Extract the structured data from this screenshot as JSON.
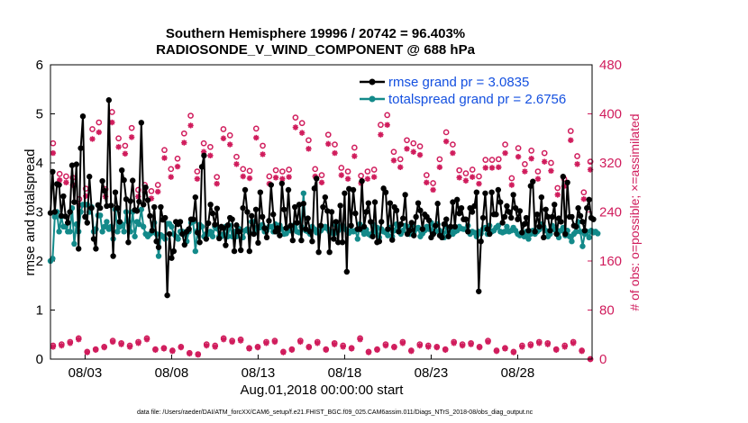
{
  "chart_data": {
    "type": "line",
    "title_line1": "Southern Hemisphere 19996 / 20742 = 96.403%",
    "title_line2": "RADIOSONDE_V_WIND_COMPONENT @ 688 hPa",
    "xlabel": "Aug.01,2018 00:00:00 start",
    "ylabel": "rmse and totalspread",
    "ylabel_right": "# of obs: o=possible; ×=assimilated",
    "xlim": [
      1,
      32.3
    ],
    "ylim": [
      0,
      6
    ],
    "ylim_right": [
      0,
      480
    ],
    "x_ticks": [
      3,
      8,
      13,
      18,
      23,
      28
    ],
    "x_tick_labels": [
      "08/03",
      "08/08",
      "08/13",
      "08/18",
      "08/23",
      "08/28"
    ],
    "y_ticks": [
      "0",
      "1",
      "2",
      "3",
      "4",
      "5",
      "6"
    ],
    "y_ticks_right": [
      "0",
      "80",
      "160",
      "240",
      "320",
      "400",
      "480"
    ],
    "colors": {
      "rmse": "#000000",
      "spread": "#138a8a",
      "obs": "#d01c5c",
      "legend_text": "#1450e0"
    },
    "series": [
      {
        "name": "rmse",
        "legend": "rmse grand pr = 3.0835",
        "values": [
          2.98,
          3.82,
          3.0,
          3.57,
          3.55,
          2.92,
          3.32,
          2.91,
          2.78,
          3.0,
          3.95,
          3.2,
          3.97,
          2.25,
          4.3,
          4.95,
          2.9,
          2.78,
          3.72,
          3.08,
          2.45,
          2.25,
          3.14,
          3.08,
          3.63,
          3.43,
          3.12,
          5.28,
          3.13,
          2.1,
          3.4,
          3.08,
          2.8,
          3.85,
          3.65,
          3.26,
          2.38,
          3.22,
          3.64,
          3.04,
          3.02,
          3.21,
          4.82,
          3.15,
          3.5,
          3.24,
          2.92,
          2.62,
          3.1,
          2.4,
          2.28,
          3.1,
          2.84,
          2.88,
          1.3,
          2.55,
          2.06,
          2.2,
          2.8,
          2.75,
          2.8,
          2.55,
          2.33,
          2.6,
          2.65,
          2.85,
          2.85,
          3.3,
          2.58,
          2.38,
          3.92,
          4.15,
          2.45,
          2.77,
          3.15,
          2.97,
          2.74,
          3.07,
          2.46,
          2.7,
          2.67,
          2.32,
          2.73,
          2.88,
          2.85,
          2.2,
          2.73,
          2.6,
          2.22,
          3.08,
          3.45,
          3.0,
          2.2,
          2.92,
          2.55,
          3.05,
          2.37,
          3.4,
          2.9,
          2.67,
          2.48,
          2.82,
          3.55,
          2.95,
          2.6,
          2.67,
          2.52,
          3.58,
          3.05,
          2.67,
          3.45,
          2.72,
          2.42,
          3.1,
          2.78,
          3.15,
          2.42,
          3.17,
          2.65,
          2.87,
          2.6,
          2.4,
          3.48,
          3.68,
          2.18,
          2.72,
          3.1,
          3.3,
          3.02,
          2.18,
          3.0,
          2.45,
          2.8,
          2.38,
          3.13,
          2.38,
          3.38,
          1.78,
          3.47,
          2.72,
          3.45,
          2.97,
          2.65,
          2.65,
          3.63,
          2.7,
          3.0,
          3.18,
          2.8,
          2.5,
          3.2,
          2.38,
          2.4,
          2.8,
          3.48,
          3.4,
          2.65,
          3.18,
          2.43,
          3.1,
          3.03,
          2.6,
          2.75,
          2.87,
          3.35,
          2.55,
          2.62,
          2.78,
          2.52,
          2.9,
          3.18,
          3.03,
          2.65,
          2.95,
          2.9,
          2.83,
          2.48,
          2.55,
          2.72,
          3.17,
          2.52,
          2.48,
          2.75,
          2.85,
          2.5,
          2.7,
          3.2,
          2.7,
          3.25,
          2.97,
          3.08,
          2.85,
          2.85,
          2.6,
          3.08,
          3.0,
          3.12,
          3.4,
          1.38,
          2.4,
          2.88,
          3.38,
          2.65,
          2.55,
          3.4,
          2.95,
          2.95,
          3.45,
          3.2,
          2.78,
          2.9,
          3.12,
          3.0,
          2.88,
          3.35,
          3.08,
          2.85,
          3.02,
          2.58,
          2.75,
          2.88,
          2.62,
          3.53,
          3.62,
          2.6,
          2.95,
          2.7,
          3.3,
          2.48,
          3.05,
          2.9,
          2.62,
          2.9,
          3.15,
          2.55,
          2.87,
          2.8,
          3.72,
          2.55,
          3.6,
          2.9,
          2.9,
          2.72,
          2.7,
          3.08,
          2.92,
          2.8,
          2.62,
          3.08,
          3.25,
          2.88,
          2.85
        ]
      },
      {
        "name": "totalspread",
        "legend": "totalspread grand pr = 2.6756",
        "values": [
          2.0,
          2.05,
          2.9,
          3.0,
          2.6,
          2.9,
          2.7,
          2.7,
          2.6,
          2.6,
          3.08,
          2.35,
          2.75,
          2.6,
          3.0,
          3.15,
          3.15,
          3.15,
          3.0,
          3.1,
          2.6,
          2.65,
          2.93,
          2.93,
          2.6,
          2.7,
          2.8,
          2.65,
          2.7,
          2.45,
          3.05,
          2.6,
          2.7,
          2.75,
          2.6,
          3.0,
          2.8,
          2.6,
          3.0,
          2.5,
          2.8,
          2.75,
          3.05,
          2.7,
          2.55,
          2.5,
          2.55,
          2.58,
          2.78,
          2.55,
          2.1,
          2.53,
          2.5,
          2.45,
          2.76,
          2.76,
          2.7,
          2.55,
          2.5,
          2.45,
          2.6,
          2.6,
          2.54,
          2.4,
          2.6,
          2.78,
          2.8,
          2.2,
          2.62,
          2.74,
          2.7,
          2.5,
          2.55,
          2.55,
          2.6,
          2.5,
          2.7,
          2.66,
          2.5,
          2.5,
          2.55,
          2.7,
          2.5,
          2.72,
          2.5,
          2.6,
          2.5,
          2.66,
          2.62,
          2.48,
          2.62,
          2.65,
          2.58,
          2.8,
          2.8,
          2.58,
          2.7,
          2.68,
          2.74,
          2.6,
          2.62,
          2.7,
          2.7,
          2.6,
          2.75,
          2.6,
          2.73,
          2.65,
          2.55,
          2.56,
          2.68,
          2.62,
          2.72,
          2.68,
          2.6,
          2.58,
          2.7,
          3.38,
          2.62,
          2.6,
          2.55,
          2.7,
          2.65,
          2.58,
          2.58,
          2.62,
          2.67,
          2.7,
          2.66,
          2.6,
          2.6,
          2.55,
          2.73,
          2.62,
          2.68,
          2.72,
          2.66,
          2.62,
          2.57,
          2.62,
          2.6,
          2.62,
          2.45,
          2.75,
          2.63,
          2.55,
          2.64,
          2.55,
          2.52,
          2.75,
          2.58,
          2.68,
          2.48,
          2.65,
          2.6,
          2.58,
          2.52,
          2.68,
          2.5,
          2.62,
          2.75,
          2.7,
          2.55,
          2.62,
          2.72,
          2.7,
          2.55,
          2.74,
          2.58,
          2.65,
          2.68,
          2.5,
          2.56,
          2.62,
          2.7,
          2.65,
          2.78,
          2.6,
          2.6,
          2.75,
          2.62,
          2.58,
          2.48,
          2.7,
          2.57,
          2.62,
          2.55,
          2.6,
          2.62,
          2.7,
          2.66,
          2.65,
          2.65,
          2.72,
          2.55,
          2.6,
          2.58,
          2.5,
          2.6,
          2.56,
          2.65,
          2.68,
          2.55,
          2.72,
          2.6,
          2.62,
          2.68,
          2.72,
          2.6,
          2.58,
          2.6,
          2.7,
          2.6,
          2.62,
          2.68,
          2.62,
          2.55,
          2.52,
          2.58,
          2.5,
          2.6,
          2.45,
          2.55,
          2.62,
          2.55,
          2.6,
          2.64,
          2.75,
          2.7,
          2.62,
          2.5,
          2.55,
          2.72,
          2.64,
          2.63,
          2.48,
          2.62,
          2.68,
          2.52,
          2.62,
          2.5,
          2.4,
          2.55,
          2.6,
          2.8,
          2.6,
          2.3,
          2.55,
          2.6,
          2.48,
          2.62,
          2.58,
          2.6,
          2.56
        ]
      },
      {
        "name": "obs_possible",
        "marker": "o",
        "values": [
          352,
          302,
          298,
          296,
          261,
          278,
          375,
          386,
          277,
          403,
          360,
          348,
          377,
          276,
          284,
          274,
          284,
          341,
          310,
          327,
          368,
          397,
          306,
          352,
          346,
          297,
          375,
          365,
          330,
          310,
          307,
          376,
          348,
          298,
          308,
          306,
          309,
          394,
          385,
          357,
          310,
          300,
          366,
          350,
          312,
          306,
          345,
          299,
          306,
          309,
          382,
          398,
          338,
          326,
          357,
          352,
          347,
          300,
          287,
          326,
          370,
          350,
          308,
          303,
          309,
          298,
          325,
          325,
          326,
          350,
          295,
          344,
          318,
          340,
          306,
          336,
          320,
          279,
          294,
          372,
          331,
          272,
          322
        ]
      },
      {
        "name": "obs_assimilated",
        "marker": "x",
        "values": [
          336,
          292,
          288,
          284,
          251,
          266,
          359,
          370,
          265,
          386,
          346,
          335,
          362,
          265,
          272,
          262,
          273,
          328,
          297,
          314,
          353,
          381,
          294,
          338,
          332,
          286,
          360,
          350,
          318,
          298,
          295,
          361,
          334,
          286,
          296,
          294,
          297,
          378,
          369,
          343,
          298,
          288,
          351,
          336,
          300,
          294,
          331,
          287,
          294,
          297,
          366,
          382,
          324,
          313,
          343,
          338,
          333,
          288,
          276,
          313,
          355,
          336,
          296,
          291,
          297,
          286,
          312,
          312,
          313,
          336,
          284,
          330,
          306,
          327,
          294,
          322,
          307,
          268,
          282,
          357,
          318,
          261,
          309
        ]
      },
      {
        "name": "obs_low_possible",
        "marker": "o",
        "values": [
          22,
          24,
          28,
          34,
          12,
          16,
          20,
          30,
          26,
          22,
          28,
          34,
          16,
          18,
          14,
          20,
          10,
          8,
          24,
          22,
          34,
          30,
          32,
          18,
          20,
          28,
          30,
          12,
          16,
          30,
          20,
          28,
          16,
          26,
          22,
          18,
          34,
          12,
          16,
          24,
          20,
          28,
          14,
          24,
          22,
          20,
          16,
          28,
          24,
          26,
          20,
          30,
          14,
          18,
          12,
          22,
          24,
          28,
          26,
          16,
          22,
          28,
          14,
          0
        ]
      },
      {
        "name": "obs_low_assimilated",
        "marker": "x",
        "values": [
          20,
          22,
          26,
          32,
          11,
          15,
          19,
          28,
          24,
          20,
          26,
          32,
          15,
          17,
          13,
          19,
          9,
          7,
          22,
          20,
          32,
          28,
          30,
          17,
          19,
          26,
          28,
          11,
          15,
          28,
          19,
          26,
          15,
          24,
          20,
          17,
          32,
          11,
          15,
          22,
          19,
          26,
          13,
          22,
          20,
          19,
          15,
          26,
          22,
          24,
          19,
          28,
          13,
          17,
          11,
          20,
          22,
          26,
          24,
          15,
          20,
          26,
          13,
          0
        ]
      }
    ],
    "legend_position": "top-right"
  },
  "footer": "data file: /Users/raeder/DAI/ATM_forcXX/CAM6_setup/f.e21.FHIST_BGC.f09_025.CAM6assim.011/Diags_NTrS_2018-08/obs_diag_output.nc"
}
